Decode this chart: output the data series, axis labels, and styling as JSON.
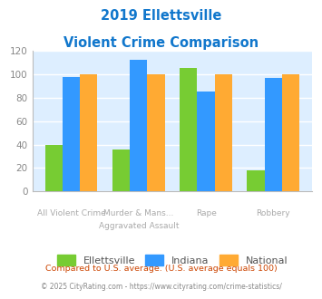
{
  "title_line1": "2019 Ellettsville",
  "title_line2": "Violent Crime Comparison",
  "cat_labels_row1": [
    "",
    "Murder & Mans...",
    "Rape",
    ""
  ],
  "cat_labels_row2": [
    "All Violent Crime",
    "Aggravated Assault",
    "",
    "Robbery"
  ],
  "ellettsville": [
    40,
    36,
    105,
    18
  ],
  "indiana": [
    98,
    112,
    85,
    97
  ],
  "national": [
    100,
    100,
    100,
    100
  ],
  "color_ellettsville": "#77cc33",
  "color_indiana": "#3399ff",
  "color_national": "#ffaa33",
  "ylim": [
    0,
    120
  ],
  "yticks": [
    0,
    20,
    40,
    60,
    80,
    100,
    120
  ],
  "title_color": "#1177cc",
  "bg_color": "#ddeeff",
  "legend_labels": [
    "Ellettsville",
    "Indiana",
    "National"
  ],
  "footnote1": "Compared to U.S. average. (U.S. average equals 100)",
  "footnote2": "© 2025 CityRating.com - https://www.cityrating.com/crime-statistics/",
  "footnote1_color": "#cc4400",
  "footnote2_color": "#888888"
}
